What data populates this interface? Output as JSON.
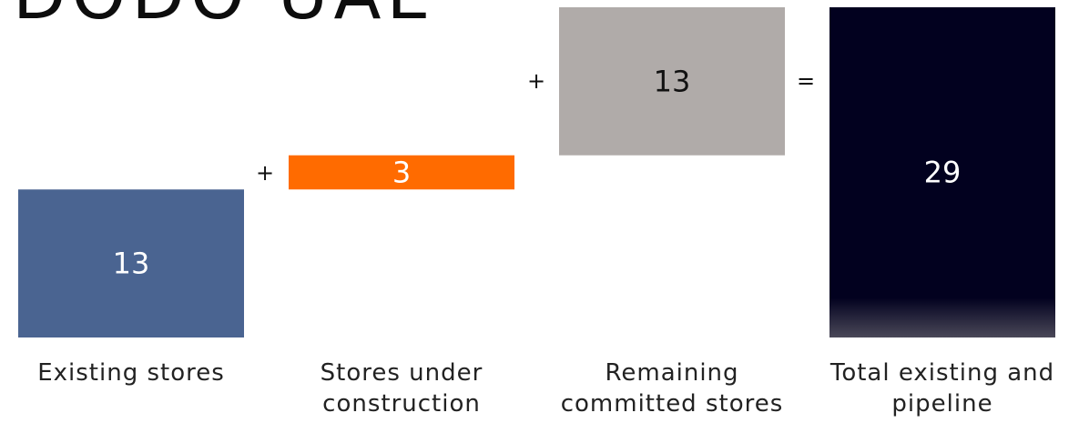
{
  "chart_data": {
    "type": "bar",
    "title": "DODO UAE",
    "categories": [
      "Existing stores",
      "Stores under\nconstruction",
      "Remaining\ncommitted stores",
      "Total existing and\npipeline"
    ],
    "values": [
      13,
      3,
      13,
      29
    ],
    "operators": [
      "+",
      "+",
      "="
    ],
    "ylim": [
      0,
      29
    ],
    "grid": false,
    "legend": "none",
    "colors": [
      "#4a6491",
      "#ff6b00",
      "#b0aba9",
      "#02011f"
    ],
    "label_colors": [
      "#ffffff",
      "#ffffff",
      "#111111",
      "#ffffff"
    ]
  }
}
